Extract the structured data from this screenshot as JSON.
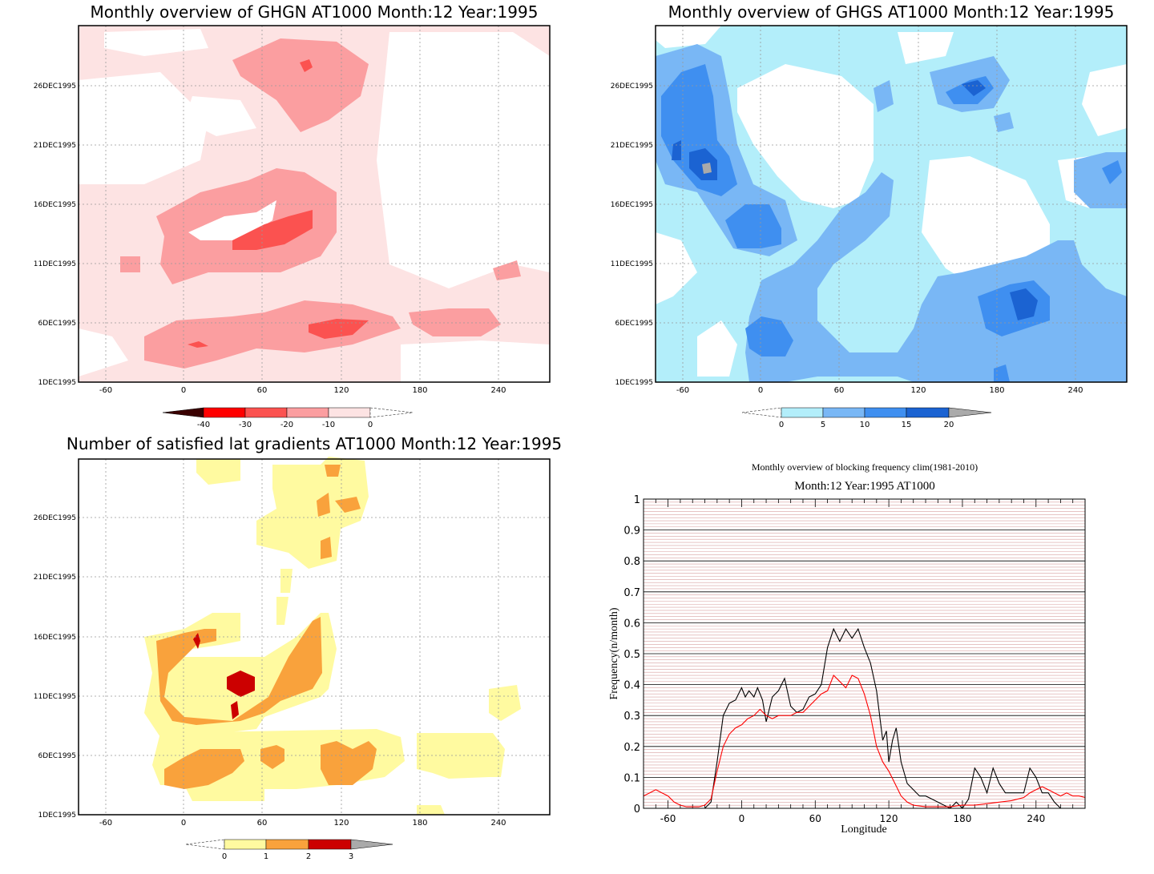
{
  "panel1": {
    "title": "Monthly overview of GHGN AT1000 Month:12 Year:1995",
    "y_ticks": [
      "1DEC1995",
      "6DEC1995",
      "11DEC1995",
      "16DEC1995",
      "21DEC1995",
      "26DEC1995"
    ],
    "x_ticks": [
      "-60",
      "0",
      "60",
      "120",
      "180",
      "240"
    ],
    "colorbar": {
      "labels": [
        "-40",
        "-30",
        "-20",
        "-10",
        "0"
      ],
      "colors": [
        "#3a0000",
        "#ff0000",
        "#fb5250",
        "#fb9ea0",
        "#fde3e3"
      ]
    }
  },
  "panel2": {
    "title": "Monthly overview of GHGS AT1000 Month:12 Year:1995",
    "y_ticks": [
      "1DEC1995",
      "6DEC1995",
      "11DEC1995",
      "16DEC1995",
      "21DEC1995",
      "26DEC1995"
    ],
    "x_ticks": [
      "-60",
      "0",
      "60",
      "120",
      "180",
      "240"
    ],
    "colorbar": {
      "labels": [
        "0",
        "5",
        "10",
        "15",
        "20"
      ],
      "colors": [
        "#b3eefa",
        "#79b7f5",
        "#3f8ff0",
        "#1b63d2",
        "#aaaaaa"
      ]
    }
  },
  "panel3": {
    "title": "Number of satisfied lat gradients AT1000 Month:12 Year:1995",
    "y_ticks": [
      "1DEC1995",
      "6DEC1995",
      "11DEC1995",
      "16DEC1995",
      "21DEC1995",
      "26DEC1995"
    ],
    "x_ticks": [
      "-60",
      "0",
      "60",
      "120",
      "180",
      "240"
    ],
    "colorbar": {
      "labels": [
        "0",
        "1",
        "2",
        "3"
      ],
      "colors": [
        "#fffaa0",
        "#f9a23c",
        "#cc0000",
        "#aaaaaa"
      ]
    }
  },
  "chart_data": {
    "type": "line",
    "title": "Monthly overview of blocking frequency clim(1981-2010)",
    "subtitle": "Month:12 Year:1995  AT1000",
    "xlabel": "Longitude",
    "ylabel": "Frequency(n/month)",
    "xlim": [
      -80,
      280
    ],
    "ylim": [
      0,
      1
    ],
    "x_ticks": [
      "-60",
      "0",
      "60",
      "120",
      "180",
      "240"
    ],
    "y_ticks": [
      "0",
      "0.1",
      "0.2",
      "0.3",
      "0.4",
      "0.5",
      "0.6",
      "0.7",
      "0.8",
      "0.9",
      "1"
    ],
    "series": [
      {
        "color": "#000000",
        "x": [
          -30,
          -25,
          -20,
          -15,
          -10,
          -5,
          0,
          3,
          6,
          10,
          13,
          17,
          20,
          25,
          30,
          35,
          40,
          45,
          50,
          55,
          60,
          65,
          70,
          75,
          80,
          85,
          90,
          95,
          100,
          105,
          110,
          115,
          118,
          120,
          123,
          126,
          130,
          135,
          140,
          145,
          150,
          155,
          160,
          170,
          175,
          180,
          185,
          190,
          195,
          200,
          205,
          210,
          215,
          220,
          230,
          235,
          240,
          245,
          250,
          255,
          260
        ],
        "y": [
          0,
          0.02,
          0.15,
          0.3,
          0.34,
          0.35,
          0.39,
          0.36,
          0.38,
          0.36,
          0.39,
          0.35,
          0.28,
          0.36,
          0.38,
          0.42,
          0.33,
          0.31,
          0.32,
          0.36,
          0.37,
          0.4,
          0.52,
          0.58,
          0.54,
          0.58,
          0.55,
          0.58,
          0.52,
          0.47,
          0.38,
          0.22,
          0.25,
          0.15,
          0.22,
          0.26,
          0.15,
          0.08,
          0.06,
          0.04,
          0.04,
          0.03,
          0.02,
          0,
          0.02,
          0,
          0.03,
          0.13,
          0.1,
          0.05,
          0.13,
          0.08,
          0.05,
          0.05,
          0.05,
          0.13,
          0.1,
          0.05,
          0.05,
          0.02,
          0
        ]
      },
      {
        "color": "#ff0000",
        "x": [
          -80,
          -75,
          -70,
          -65,
          -60,
          -55,
          -50,
          -45,
          -40,
          -35,
          -30,
          -25,
          -20,
          -15,
          -10,
          -5,
          0,
          5,
          10,
          15,
          20,
          25,
          30,
          35,
          40,
          45,
          50,
          55,
          60,
          65,
          70,
          75,
          80,
          85,
          90,
          95,
          100,
          105,
          110,
          115,
          120,
          125,
          130,
          135,
          140,
          150,
          160,
          170,
          180,
          190,
          200,
          210,
          220,
          230,
          235,
          240,
          245,
          250,
          255,
          260,
          265,
          270,
          275,
          280
        ],
        "y": [
          0.04,
          0.05,
          0.06,
          0.05,
          0.04,
          0.02,
          0.01,
          0.005,
          0.005,
          0.005,
          0.01,
          0.03,
          0.12,
          0.2,
          0.24,
          0.26,
          0.27,
          0.29,
          0.3,
          0.32,
          0.3,
          0.29,
          0.3,
          0.3,
          0.3,
          0.31,
          0.31,
          0.33,
          0.35,
          0.37,
          0.38,
          0.43,
          0.41,
          0.39,
          0.43,
          0.42,
          0.37,
          0.3,
          0.2,
          0.15,
          0.12,
          0.08,
          0.04,
          0.02,
          0.01,
          0.005,
          0.005,
          0.005,
          0.01,
          0.01,
          0.015,
          0.02,
          0.025,
          0.035,
          0.05,
          0.06,
          0.07,
          0.06,
          0.05,
          0.04,
          0.05,
          0.04,
          0.04,
          0.035
        ]
      }
    ]
  }
}
